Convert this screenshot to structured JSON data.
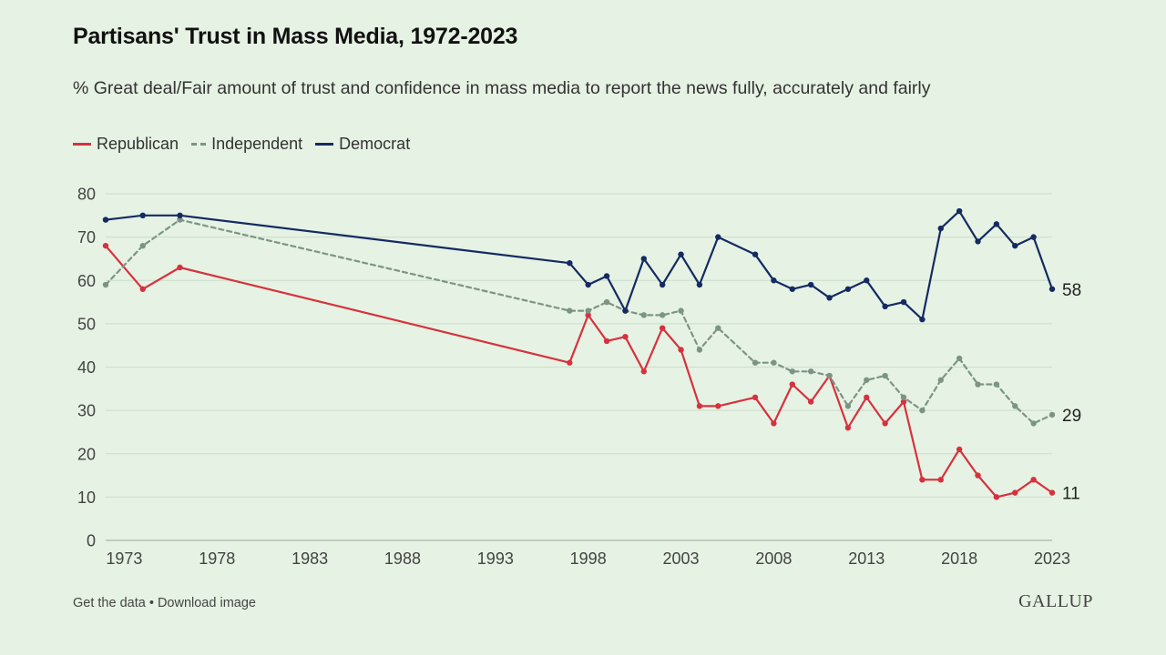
{
  "header": {
    "title": "Partisans' Trust in Mass Media, 1972-2023",
    "subtitle": "% Great deal/Fair amount of trust and confidence in mass media to report the news fully, accurately and fairly"
  },
  "footer": {
    "get_data": "Get the data",
    "separator": "•",
    "download": "Download image",
    "logo": "GALLUP"
  },
  "chart_data": {
    "type": "line",
    "title": "Partisans' Trust in Mass Media, 1972-2023",
    "subtitle": "% Great deal/Fair amount of trust and confidence in mass media to report the news fully, accurately and fairly",
    "xlabel": "",
    "ylabel": "",
    "xlim": [
      1972,
      2023
    ],
    "ylim": [
      0,
      80
    ],
    "x_ticks": [
      1973,
      1978,
      1983,
      1988,
      1993,
      1998,
      2003,
      2008,
      2013,
      2018,
      2023
    ],
    "y_ticks": [
      0,
      10,
      20,
      30,
      40,
      50,
      60,
      70,
      80
    ],
    "grid": true,
    "legend_position": "top-left",
    "series": [
      {
        "name": "Republican",
        "color": "#d6323e",
        "style": "solid",
        "end_label": "11",
        "points": [
          [
            1972,
            68
          ],
          [
            1974,
            58
          ],
          [
            1976,
            63
          ],
          [
            1997,
            41
          ],
          [
            1998,
            52
          ],
          [
            1999,
            46
          ],
          [
            2000,
            47
          ],
          [
            2001,
            39
          ],
          [
            2002,
            49
          ],
          [
            2003,
            44
          ],
          [
            2004,
            31
          ],
          [
            2005,
            31
          ],
          [
            2007,
            33
          ],
          [
            2008,
            27
          ],
          [
            2009,
            36
          ],
          [
            2010,
            32
          ],
          [
            2011,
            38
          ],
          [
            2012,
            26
          ],
          [
            2013,
            33
          ],
          [
            2014,
            27
          ],
          [
            2015,
            32
          ],
          [
            2016,
            14
          ],
          [
            2017,
            14
          ],
          [
            2018,
            21
          ],
          [
            2019,
            15
          ],
          [
            2020,
            10
          ],
          [
            2021,
            11
          ],
          [
            2022,
            14
          ],
          [
            2023,
            11
          ]
        ]
      },
      {
        "name": "Independent",
        "color": "#7c9486",
        "style": "dashed",
        "end_label": "29",
        "points": [
          [
            1972,
            59
          ],
          [
            1974,
            68
          ],
          [
            1976,
            74
          ],
          [
            1997,
            53
          ],
          [
            1998,
            53
          ],
          [
            1999,
            55
          ],
          [
            2000,
            53
          ],
          [
            2001,
            52
          ],
          [
            2002,
            52
          ],
          [
            2003,
            53
          ],
          [
            2004,
            44
          ],
          [
            2005,
            49
          ],
          [
            2007,
            41
          ],
          [
            2008,
            41
          ],
          [
            2009,
            39
          ],
          [
            2010,
            39
          ],
          [
            2011,
            38
          ],
          [
            2012,
            31
          ],
          [
            2013,
            37
          ],
          [
            2014,
            38
          ],
          [
            2015,
            33
          ],
          [
            2016,
            30
          ],
          [
            2017,
            37
          ],
          [
            2018,
            42
          ],
          [
            2019,
            36
          ],
          [
            2020,
            36
          ],
          [
            2021,
            31
          ],
          [
            2022,
            27
          ],
          [
            2023,
            29
          ]
        ]
      },
      {
        "name": "Democrat",
        "color": "#142a63",
        "style": "solid",
        "end_label": "58",
        "points": [
          [
            1972,
            74
          ],
          [
            1974,
            75
          ],
          [
            1976,
            75
          ],
          [
            1997,
            64
          ],
          [
            1998,
            59
          ],
          [
            1999,
            61
          ],
          [
            2000,
            53
          ],
          [
            2001,
            65
          ],
          [
            2002,
            59
          ],
          [
            2003,
            66
          ],
          [
            2004,
            59
          ],
          [
            2005,
            70
          ],
          [
            2007,
            66
          ],
          [
            2008,
            60
          ],
          [
            2009,
            58
          ],
          [
            2010,
            59
          ],
          [
            2011,
            56
          ],
          [
            2012,
            58
          ],
          [
            2013,
            60
          ],
          [
            2014,
            54
          ],
          [
            2015,
            55
          ],
          [
            2016,
            51
          ],
          [
            2017,
            72
          ],
          [
            2018,
            76
          ],
          [
            2019,
            69
          ],
          [
            2020,
            73
          ],
          [
            2021,
            68
          ],
          [
            2022,
            70
          ],
          [
            2023,
            58
          ]
        ]
      }
    ]
  }
}
